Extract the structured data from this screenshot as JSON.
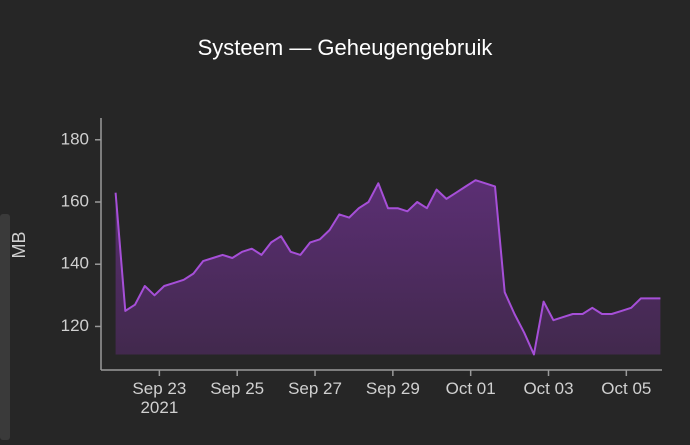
{
  "chart_data": {
    "type": "area",
    "title": "Systeem — Geheugengebruik",
    "y_label": "MB",
    "color": "#a64fd8",
    "grid": false,
    "x": [
      "2021-09-21T21:00",
      "2021-09-22T03:00",
      "2021-09-22T09:00",
      "2021-09-22T15:00",
      "2021-09-22T21:00",
      "2021-09-23T03:00",
      "2021-09-23T09:00",
      "2021-09-23T15:00",
      "2021-09-23T21:00",
      "2021-09-24T03:00",
      "2021-09-24T09:00",
      "2021-09-24T15:00",
      "2021-09-24T21:00",
      "2021-09-25T03:00",
      "2021-09-25T09:00",
      "2021-09-25T15:00",
      "2021-09-25T21:00",
      "2021-09-26T03:00",
      "2021-09-26T09:00",
      "2021-09-26T15:00",
      "2021-09-26T21:00",
      "2021-09-27T03:00",
      "2021-09-27T09:00",
      "2021-09-27T15:00",
      "2021-09-27T21:00",
      "2021-09-28T03:00",
      "2021-09-28T09:00",
      "2021-09-28T15:00",
      "2021-09-28T21:00",
      "2021-09-29T03:00",
      "2021-09-29T09:00",
      "2021-09-29T15:00",
      "2021-09-29T21:00",
      "2021-09-30T03:00",
      "2021-09-30T09:00",
      "2021-09-30T15:00",
      "2021-09-30T21:00",
      "2021-10-01T03:00",
      "2021-10-01T09:00",
      "2021-10-01T15:00",
      "2021-10-01T21:00",
      "2021-10-02T03:00",
      "2021-10-02T09:00",
      "2021-10-02T15:00",
      "2021-10-02T21:00",
      "2021-10-03T03:00",
      "2021-10-03T09:00",
      "2021-10-03T15:00",
      "2021-10-03T21:00",
      "2021-10-04T03:00",
      "2021-10-04T09:00",
      "2021-10-04T15:00",
      "2021-10-04T21:00",
      "2021-10-05T03:00",
      "2021-10-05T09:00",
      "2021-10-05T15:00",
      "2021-10-05T21:00"
    ],
    "values": [
      163,
      125,
      127,
      133,
      130,
      133,
      134,
      135,
      137,
      141,
      142,
      143,
      142,
      144,
      145,
      143,
      147,
      149,
      144,
      143,
      147,
      148,
      151,
      156,
      155,
      158,
      160,
      166,
      158,
      158,
      157,
      160,
      158,
      164,
      161,
      163,
      165,
      167,
      166,
      165,
      131,
      124,
      118,
      111,
      128,
      122,
      123,
      124,
      124,
      126,
      124,
      124,
      125,
      126,
      129,
      129,
      129
    ],
    "xlim": [
      "2021-09-21T12:00",
      "2021-10-05T22:00"
    ],
    "xticks": [
      {
        "value": "2021-09-23T00:00",
        "label": "Sep 23\n2021"
      },
      {
        "value": "2021-09-25T00:00",
        "label": "Sep 25"
      },
      {
        "value": "2021-09-27T00:00",
        "label": "Sep 27"
      },
      {
        "value": "2021-09-29T00:00",
        "label": "Sep 29"
      },
      {
        "value": "2021-10-01T00:00",
        "label": "Oct 01"
      },
      {
        "value": "2021-10-03T00:00",
        "label": "Oct 03"
      },
      {
        "value": "2021-10-05T00:00",
        "label": "Oct 05"
      }
    ],
    "ylim": [
      106,
      187
    ],
    "yticks": [
      120,
      140,
      160,
      180
    ]
  }
}
